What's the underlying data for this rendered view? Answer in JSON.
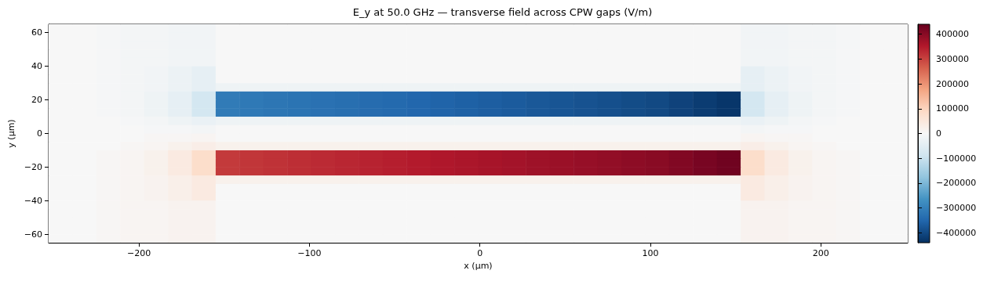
{
  "chart_data": {
    "type": "heatmap",
    "title": "E_y at 50.0 GHz — transverse field across CPW gaps (V/m)",
    "xlabel": "x (µm)",
    "ylabel": "y (µm)",
    "xlim": [
      -253,
      251
    ],
    "xticks": [
      -200,
      -100,
      0,
      100,
      200
    ],
    "ylim": [
      -65,
      65
    ],
    "yticks": [
      -60,
      -40,
      -20,
      0,
      20,
      40,
      60
    ],
    "clim": [
      -440000,
      440000
    ],
    "cticks": [
      -400000,
      -300000,
      -200000,
      -100000,
      0,
      100000,
      200000,
      300000,
      400000
    ],
    "cells": [
      [
        0,
        0,
        -5000,
        -10000,
        -10000,
        -15000,
        -15000,
        0,
        0,
        0,
        0,
        0,
        0,
        0,
        0,
        0,
        0,
        0,
        0,
        0,
        0,
        0,
        0,
        0,
        0,
        0,
        0,
        0,
        0,
        -15000,
        -15000,
        -10000,
        -10000,
        -5000,
        0,
        0
      ],
      [
        0,
        0,
        -5000,
        -10000,
        -10000,
        -15000,
        -15000,
        0,
        0,
        0,
        0,
        0,
        0,
        0,
        0,
        0,
        0,
        0,
        0,
        0,
        0,
        0,
        0,
        0,
        0,
        0,
        0,
        0,
        0,
        -15000,
        -15000,
        -10000,
        -10000,
        -5000,
        0,
        0
      ],
      [
        0,
        0,
        -5000,
        -10000,
        -10000,
        -15000,
        -15000,
        0,
        0,
        0,
        0,
        0,
        0,
        0,
        0,
        0,
        0,
        0,
        0,
        0,
        0,
        0,
        0,
        0,
        0,
        0,
        0,
        0,
        0,
        -15000,
        -15000,
        -10000,
        -10000,
        -5000,
        0,
        0
      ],
      [
        0,
        0,
        -5000,
        -10000,
        -10000,
        -15000,
        -15000,
        0,
        0,
        0,
        0,
        0,
        0,
        0,
        0,
        0,
        0,
        0,
        0,
        0,
        0,
        0,
        0,
        0,
        0,
        0,
        0,
        0,
        0,
        -15000,
        -15000,
        -10000,
        -10000,
        -5000,
        0,
        0
      ],
      [
        0,
        0,
        -5000,
        -10000,
        -10000,
        -15000,
        -15000,
        0,
        0,
        0,
        0,
        0,
        0,
        0,
        0,
        0,
        0,
        0,
        0,
        0,
        0,
        0,
        0,
        0,
        0,
        0,
        0,
        0,
        0,
        -15000,
        -15000,
        -10000,
        -10000,
        -5000,
        0,
        0
      ],
      [
        0,
        0,
        -5000,
        -10000,
        -15000,
        -25000,
        -40000,
        0,
        0,
        0,
        0,
        0,
        0,
        0,
        0,
        0,
        0,
        0,
        0,
        0,
        0,
        0,
        0,
        0,
        0,
        0,
        0,
        0,
        0,
        -40000,
        -25000,
        -15000,
        -10000,
        -5000,
        0,
        0
      ],
      [
        0,
        0,
        -5000,
        -10000,
        -15000,
        -25000,
        -40000,
        0,
        0,
        0,
        0,
        0,
        0,
        0,
        0,
        0,
        0,
        0,
        0,
        0,
        0,
        0,
        0,
        0,
        0,
        0,
        0,
        0,
        0,
        -40000,
        -25000,
        -15000,
        -10000,
        -5000,
        0,
        0
      ],
      [
        0,
        0,
        -5000,
        -10000,
        -15000,
        -25000,
        -40000,
        -20000,
        -20000,
        -20000,
        -20000,
        -20000,
        -20000,
        -20000,
        -20000,
        -20000,
        -20000,
        -20000,
        -20000,
        -20000,
        -20000,
        -20000,
        -20000,
        -20000,
        -20000,
        -20000,
        -20000,
        -20000,
        -20000,
        -40000,
        -25000,
        -15000,
        -10000,
        -5000,
        0,
        0
      ],
      [
        0,
        0,
        -5000,
        -10000,
        -20000,
        -40000,
        -80000,
        -310000,
        -315000,
        -320000,
        -325000,
        -330000,
        -335000,
        -340000,
        -345000,
        -350000,
        -355000,
        -360000,
        -365000,
        -370000,
        -375000,
        -380000,
        -385000,
        -390000,
        -395000,
        -400000,
        -410000,
        -420000,
        -430000,
        -80000,
        -40000,
        -20000,
        -10000,
        -5000,
        0,
        0
      ],
      [
        0,
        0,
        -5000,
        -10000,
        -20000,
        -40000,
        -80000,
        -310000,
        -315000,
        -320000,
        -325000,
        -330000,
        -335000,
        -340000,
        -345000,
        -350000,
        -355000,
        -360000,
        -365000,
        -370000,
        -375000,
        -380000,
        -385000,
        -390000,
        -395000,
        -400000,
        -410000,
        -420000,
        -430000,
        -80000,
        -40000,
        -20000,
        -10000,
        -5000,
        0,
        0
      ],
      [
        0,
        0,
        -5000,
        -10000,
        -20000,
        -40000,
        -80000,
        -310000,
        -315000,
        -320000,
        -325000,
        -330000,
        -335000,
        -340000,
        -345000,
        -350000,
        -355000,
        -360000,
        -365000,
        -370000,
        -375000,
        -380000,
        -385000,
        -390000,
        -395000,
        -400000,
        -410000,
        -420000,
        -430000,
        -80000,
        -40000,
        -20000,
        -10000,
        -5000,
        0,
        0
      ],
      [
        0,
        0,
        0,
        -5000,
        -10000,
        -20000,
        -30000,
        -20000,
        -20000,
        -20000,
        -20000,
        -20000,
        -20000,
        -20000,
        -20000,
        -20000,
        -20000,
        -20000,
        -20000,
        -20000,
        -20000,
        -20000,
        -20000,
        -20000,
        -20000,
        -20000,
        -20000,
        -20000,
        -20000,
        -30000,
        -20000,
        -10000,
        -5000,
        0,
        0,
        0
      ],
      [
        0,
        0,
        0,
        0,
        -5000,
        -5000,
        -10000,
        0,
        0,
        0,
        0,
        0,
        0,
        0,
        0,
        0,
        0,
        0,
        0,
        0,
        0,
        0,
        0,
        0,
        0,
        0,
        0,
        0,
        0,
        -10000,
        -5000,
        -5000,
        0,
        0,
        0,
        0
      ],
      [
        0,
        0,
        0,
        0,
        5000,
        5000,
        10000,
        0,
        0,
        0,
        0,
        0,
        0,
        0,
        0,
        0,
        0,
        0,
        0,
        0,
        0,
        0,
        0,
        0,
        0,
        0,
        0,
        0,
        0,
        10000,
        5000,
        5000,
        0,
        0,
        0,
        0
      ],
      [
        0,
        0,
        0,
        5000,
        10000,
        20000,
        30000,
        20000,
        20000,
        20000,
        20000,
        20000,
        20000,
        20000,
        20000,
        20000,
        20000,
        20000,
        20000,
        20000,
        20000,
        20000,
        20000,
        20000,
        20000,
        20000,
        20000,
        20000,
        20000,
        30000,
        20000,
        10000,
        5000,
        0,
        0,
        0
      ],
      [
        0,
        0,
        5000,
        10000,
        20000,
        40000,
        80000,
        310000,
        315000,
        320000,
        325000,
        330000,
        335000,
        340000,
        345000,
        350000,
        355000,
        360000,
        365000,
        370000,
        375000,
        380000,
        385000,
        390000,
        395000,
        400000,
        410000,
        420000,
        430000,
        80000,
        40000,
        20000,
        10000,
        5000,
        0,
        0
      ],
      [
        0,
        0,
        5000,
        10000,
        20000,
        40000,
        80000,
        310000,
        315000,
        320000,
        325000,
        330000,
        335000,
        340000,
        345000,
        350000,
        355000,
        360000,
        365000,
        370000,
        375000,
        380000,
        385000,
        390000,
        395000,
        400000,
        410000,
        420000,
        430000,
        80000,
        40000,
        20000,
        10000,
        5000,
        0,
        0
      ],
      [
        0,
        0,
        5000,
        10000,
        20000,
        40000,
        80000,
        310000,
        315000,
        320000,
        325000,
        330000,
        335000,
        340000,
        345000,
        350000,
        355000,
        360000,
        365000,
        370000,
        375000,
        380000,
        385000,
        390000,
        395000,
        400000,
        410000,
        420000,
        430000,
        80000,
        40000,
        20000,
        10000,
        5000,
        0,
        0
      ],
      [
        0,
        0,
        5000,
        10000,
        15000,
        25000,
        40000,
        20000,
        20000,
        20000,
        20000,
        20000,
        20000,
        20000,
        20000,
        20000,
        20000,
        20000,
        20000,
        20000,
        20000,
        20000,
        20000,
        20000,
        20000,
        20000,
        20000,
        20000,
        20000,
        40000,
        25000,
        15000,
        10000,
        5000,
        0,
        0
      ],
      [
        0,
        0,
        5000,
        10000,
        15000,
        25000,
        40000,
        0,
        0,
        0,
        0,
        0,
        0,
        0,
        0,
        0,
        0,
        0,
        0,
        0,
        0,
        0,
        0,
        0,
        0,
        0,
        0,
        0,
        0,
        40000,
        25000,
        15000,
        10000,
        5000,
        0,
        0
      ],
      [
        0,
        0,
        5000,
        10000,
        15000,
        25000,
        40000,
        0,
        0,
        0,
        0,
        0,
        0,
        0,
        0,
        0,
        0,
        0,
        0,
        0,
        0,
        0,
        0,
        0,
        0,
        0,
        0,
        0,
        0,
        40000,
        25000,
        15000,
        10000,
        5000,
        0,
        0
      ],
      [
        0,
        0,
        5000,
        10000,
        10000,
        15000,
        15000,
        0,
        0,
        0,
        0,
        0,
        0,
        0,
        0,
        0,
        0,
        0,
        0,
        0,
        0,
        0,
        0,
        0,
        0,
        0,
        0,
        0,
        0,
        15000,
        15000,
        10000,
        10000,
        5000,
        0,
        0
      ],
      [
        0,
        0,
        5000,
        10000,
        10000,
        15000,
        15000,
        0,
        0,
        0,
        0,
        0,
        0,
        0,
        0,
        0,
        0,
        0,
        0,
        0,
        0,
        0,
        0,
        0,
        0,
        0,
        0,
        0,
        0,
        15000,
        15000,
        10000,
        10000,
        5000,
        0,
        0
      ],
      [
        0,
        0,
        5000,
        10000,
        10000,
        15000,
        15000,
        0,
        0,
        0,
        0,
        0,
        0,
        0,
        0,
        0,
        0,
        0,
        0,
        0,
        0,
        0,
        0,
        0,
        0,
        0,
        0,
        0,
        0,
        15000,
        15000,
        10000,
        10000,
        5000,
        0,
        0
      ],
      [
        0,
        0,
        5000,
        10000,
        10000,
        15000,
        15000,
        0,
        0,
        0,
        0,
        0,
        0,
        0,
        0,
        0,
        0,
        0,
        0,
        0,
        0,
        0,
        0,
        0,
        0,
        0,
        0,
        0,
        0,
        15000,
        15000,
        10000,
        10000,
        5000,
        0,
        0
      ],
      [
        0,
        0,
        5000,
        10000,
        10000,
        15000,
        15000,
        0,
        0,
        0,
        0,
        0,
        0,
        0,
        0,
        0,
        0,
        0,
        0,
        0,
        0,
        0,
        0,
        0,
        0,
        0,
        0,
        0,
        0,
        15000,
        15000,
        10000,
        10000,
        5000,
        0,
        0
      ]
    ]
  }
}
